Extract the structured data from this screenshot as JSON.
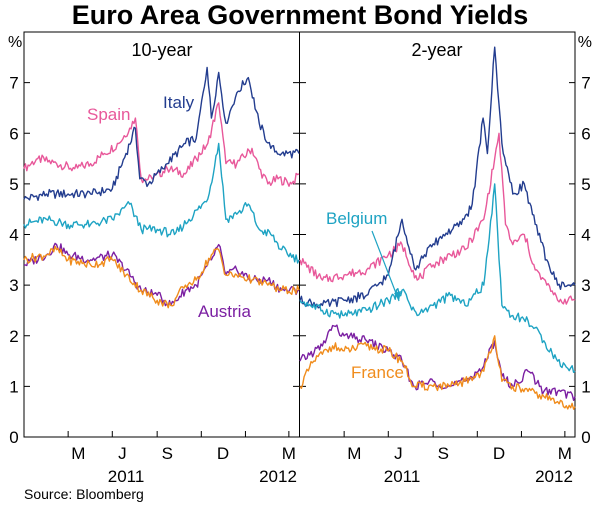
{
  "chart_data": {
    "type": "line",
    "title": "Euro Area Government Bond Yields",
    "y_unit": "%",
    "ylim": [
      0,
      8
    ],
    "yticks": [
      0,
      1,
      2,
      3,
      4,
      5,
      6,
      7
    ],
    "x_range": [
      "2011-03-01",
      "2012-03-15"
    ],
    "x_tick_labels": [
      "M",
      "J",
      "S",
      "D",
      "M"
    ],
    "x_year_labels": [
      "2011",
      "2012"
    ],
    "grid": false,
    "source": "Source: Bloomberg",
    "colors": {
      "Spain": "#e8589a",
      "Italy": "#233d8f",
      "Belgium": "#1ea3c3",
      "Austria": "#7b1fa2",
      "France": "#f08c1c"
    },
    "panels": [
      {
        "title": "10-year",
        "series": [
          {
            "name": "Spain",
            "color": "#e8589a",
            "points": [
              [
                "2011-03-01",
                5.3
              ],
              [
                "2011-03-20",
                5.5
              ],
              [
                "2011-04-15",
                5.4
              ],
              [
                "2011-05-10",
                5.3
              ],
              [
                "2011-06-01",
                5.4
              ],
              [
                "2011-06-20",
                5.6
              ],
              [
                "2011-07-10",
                5.8
              ],
              [
                "2011-07-25",
                6.1
              ],
              [
                "2011-08-02",
                6.3
              ],
              [
                "2011-08-10",
                5.1
              ],
              [
                "2011-08-25",
                5.1
              ],
              [
                "2011-09-15",
                5.3
              ],
              [
                "2011-10-10",
                5.2
              ],
              [
                "2011-10-25",
                5.5
              ],
              [
                "2011-11-10",
                5.8
              ],
              [
                "2011-11-25",
                6.6
              ],
              [
                "2011-12-05",
                5.4
              ],
              [
                "2011-12-20",
                5.4
              ],
              [
                "2012-01-10",
                5.7
              ],
              [
                "2012-01-20",
                5.3
              ],
              [
                "2012-02-01",
                5.0
              ],
              [
                "2012-02-15",
                5.1
              ],
              [
                "2012-03-05",
                5.0
              ],
              [
                "2012-03-15",
                5.2
              ]
            ]
          },
          {
            "name": "Italy",
            "color": "#233d8f",
            "points": [
              [
                "2011-03-01",
                4.7
              ],
              [
                "2011-04-01",
                4.8
              ],
              [
                "2011-05-01",
                4.8
              ],
              [
                "2011-06-01",
                4.8
              ],
              [
                "2011-07-01",
                4.9
              ],
              [
                "2011-07-20",
                5.6
              ],
              [
                "2011-08-02",
                6.1
              ],
              [
                "2011-08-08",
                5.1
              ],
              [
                "2011-08-20",
                5.0
              ],
              [
                "2011-09-15",
                5.4
              ],
              [
                "2011-10-10",
                5.8
              ],
              [
                "2011-10-25",
                5.9
              ],
              [
                "2011-11-09",
                7.3
              ],
              [
                "2011-11-15",
                6.3
              ],
              [
                "2011-11-25",
                7.2
              ],
              [
                "2011-12-05",
                6.2
              ],
              [
                "2011-12-20",
                6.8
              ],
              [
                "2012-01-05",
                7.1
              ],
              [
                "2012-01-20",
                6.2
              ],
              [
                "2012-02-05",
                5.7
              ],
              [
                "2012-02-20",
                5.6
              ],
              [
                "2012-03-15",
                5.6
              ]
            ]
          },
          {
            "name": "Belgium",
            "color": "#1ea3c3",
            "points": [
              [
                "2011-03-01",
                4.2
              ],
              [
                "2011-04-01",
                4.3
              ],
              [
                "2011-05-01",
                4.2
              ],
              [
                "2011-06-01",
                4.2
              ],
              [
                "2011-07-01",
                4.3
              ],
              [
                "2011-07-25",
                4.6
              ],
              [
                "2011-08-10",
                4.1
              ],
              [
                "2011-09-01",
                4.1
              ],
              [
                "2011-09-25",
                4.0
              ],
              [
                "2011-10-15",
                4.3
              ],
              [
                "2011-11-10",
                4.7
              ],
              [
                "2011-11-25",
                5.8
              ],
              [
                "2011-12-05",
                4.3
              ],
              [
                "2011-12-20",
                4.4
              ],
              [
                "2012-01-05",
                4.6
              ],
              [
                "2012-01-20",
                4.1
              ],
              [
                "2012-02-05",
                4.0
              ],
              [
                "2012-02-20",
                3.7
              ],
              [
                "2012-03-15",
                3.5
              ]
            ]
          },
          {
            "name": "Austria",
            "color": "#7b1fa2",
            "points": [
              [
                "2011-03-01",
                3.4
              ],
              [
                "2011-04-01",
                3.6
              ],
              [
                "2011-04-15",
                3.8
              ],
              [
                "2011-05-01",
                3.6
              ],
              [
                "2011-06-01",
                3.5
              ],
              [
                "2011-07-01",
                3.6
              ],
              [
                "2011-07-20",
                3.3
              ],
              [
                "2011-08-10",
                2.9
              ],
              [
                "2011-09-01",
                2.8
              ],
              [
                "2011-09-20",
                2.6
              ],
              [
                "2011-10-10",
                2.9
              ],
              [
                "2011-10-25",
                3.0
              ],
              [
                "2011-11-15",
                3.5
              ],
              [
                "2011-11-25",
                3.8
              ],
              [
                "2011-12-05",
                3.2
              ],
              [
                "2011-12-20",
                3.3
              ],
              [
                "2012-01-10",
                3.1
              ],
              [
                "2012-02-01",
                3.1
              ],
              [
                "2012-02-20",
                2.9
              ],
              [
                "2012-03-15",
                2.9
              ]
            ]
          },
          {
            "name": "France",
            "color": "#f08c1c",
            "points": [
              [
                "2011-03-01",
                3.5
              ],
              [
                "2011-04-01",
                3.6
              ],
              [
                "2011-04-15",
                3.7
              ],
              [
                "2011-05-01",
                3.5
              ],
              [
                "2011-06-01",
                3.4
              ],
              [
                "2011-07-01",
                3.5
              ],
              [
                "2011-07-20",
                3.2
              ],
              [
                "2011-08-10",
                2.9
              ],
              [
                "2011-09-01",
                2.7
              ],
              [
                "2011-09-20",
                2.6
              ],
              [
                "2011-10-10",
                3.0
              ],
              [
                "2011-10-25",
                3.1
              ],
              [
                "2011-11-15",
                3.6
              ],
              [
                "2011-11-25",
                3.7
              ],
              [
                "2011-12-05",
                3.2
              ],
              [
                "2011-12-20",
                3.2
              ],
              [
                "2012-01-10",
                3.1
              ],
              [
                "2012-02-01",
                3.0
              ],
              [
                "2012-02-20",
                2.9
              ],
              [
                "2012-03-15",
                2.9
              ]
            ]
          }
        ],
        "annotations": [
          {
            "text": "Spain",
            "series": "Spain"
          },
          {
            "text": "Italy",
            "series": "Italy"
          },
          {
            "text": "Austria",
            "series": "Austria"
          }
        ]
      },
      {
        "title": "2-year",
        "series": [
          {
            "name": "Spain",
            "color": "#e8589a",
            "points": [
              [
                "2011-03-01",
                3.5
              ],
              [
                "2011-04-01",
                3.1
              ],
              [
                "2011-05-01",
                3.2
              ],
              [
                "2011-06-01",
                3.3
              ],
              [
                "2011-07-01",
                3.6
              ],
              [
                "2011-07-20",
                3.8
              ],
              [
                "2011-08-10",
                3.1
              ],
              [
                "2011-09-01",
                3.4
              ],
              [
                "2011-09-25",
                3.6
              ],
              [
                "2011-10-15",
                3.7
              ],
              [
                "2011-11-10",
                4.3
              ],
              [
                "2011-11-25",
                5.5
              ],
              [
                "2011-12-01",
                6.0
              ],
              [
                "2011-12-10",
                4.2
              ],
              [
                "2011-12-20",
                3.8
              ],
              [
                "2012-01-05",
                4.0
              ],
              [
                "2012-01-20",
                3.3
              ],
              [
                "2012-02-05",
                3.0
              ],
              [
                "2012-02-20",
                2.7
              ],
              [
                "2012-03-15",
                2.7
              ]
            ]
          },
          {
            "name": "Italy",
            "color": "#233d8f",
            "points": [
              [
                "2011-03-01",
                2.7
              ],
              [
                "2011-04-01",
                2.6
              ],
              [
                "2011-05-01",
                2.7
              ],
              [
                "2011-06-01",
                2.8
              ],
              [
                "2011-07-01",
                3.2
              ],
              [
                "2011-07-20",
                4.3
              ],
              [
                "2011-08-08",
                3.3
              ],
              [
                "2011-08-20",
                3.6
              ],
              [
                "2011-09-15",
                4.0
              ],
              [
                "2011-10-10",
                4.2
              ],
              [
                "2011-10-25",
                4.6
              ],
              [
                "2011-11-09",
                6.3
              ],
              [
                "2011-11-15",
                5.6
              ],
              [
                "2011-11-25",
                7.7
              ],
              [
                "2011-12-05",
                5.8
              ],
              [
                "2011-12-20",
                4.8
              ],
              [
                "2012-01-05",
                5.0
              ],
              [
                "2012-01-20",
                4.2
              ],
              [
                "2012-02-05",
                3.5
              ],
              [
                "2012-02-20",
                3.0
              ],
              [
                "2012-03-15",
                3.0
              ]
            ]
          },
          {
            "name": "Belgium",
            "color": "#1ea3c3",
            "points": [
              [
                "2011-03-01",
                2.7
              ],
              [
                "2011-04-01",
                2.5
              ],
              [
                "2011-05-01",
                2.4
              ],
              [
                "2011-06-01",
                2.5
              ],
              [
                "2011-07-01",
                2.7
              ],
              [
                "2011-07-20",
                2.9
              ],
              [
                "2011-08-10",
                2.4
              ],
              [
                "2011-09-01",
                2.6
              ],
              [
                "2011-09-25",
                2.8
              ],
              [
                "2011-10-15",
                2.6
              ],
              [
                "2011-11-10",
                3.0
              ],
              [
                "2011-11-25",
                5.0
              ],
              [
                "2011-12-05",
                2.6
              ],
              [
                "2011-12-20",
                2.4
              ],
              [
                "2012-01-10",
                2.3
              ],
              [
                "2012-02-01",
                1.9
              ],
              [
                "2012-02-20",
                1.5
              ],
              [
                "2012-03-15",
                1.3
              ]
            ]
          },
          {
            "name": "Austria",
            "color": "#7b1fa2",
            "points": [
              [
                "2011-03-01",
                1.5
              ],
              [
                "2011-04-01",
                1.8
              ],
              [
                "2011-04-15",
                2.2
              ],
              [
                "2011-05-01",
                2.0
              ],
              [
                "2011-06-01",
                1.9
              ],
              [
                "2011-07-01",
                1.7
              ],
              [
                "2011-07-20",
                1.5
              ],
              [
                "2011-08-05",
                1.0
              ],
              [
                "2011-09-01",
                1.1
              ],
              [
                "2011-09-25",
                1.0
              ],
              [
                "2011-10-15",
                1.1
              ],
              [
                "2011-11-10",
                1.4
              ],
              [
                "2011-11-25",
                1.9
              ],
              [
                "2011-12-05",
                1.2
              ],
              [
                "2011-12-20",
                1.0
              ],
              [
                "2012-01-10",
                1.3
              ],
              [
                "2012-02-01",
                0.9
              ],
              [
                "2012-02-20",
                0.9
              ],
              [
                "2012-03-15",
                0.8
              ]
            ]
          },
          {
            "name": "France",
            "color": "#f08c1c",
            "points": [
              [
                "2011-03-01",
                1.0
              ],
              [
                "2011-03-20",
                1.5
              ],
              [
                "2011-04-15",
                1.8
              ],
              [
                "2011-05-01",
                1.7
              ],
              [
                "2011-06-01",
                1.8
              ],
              [
                "2011-07-01",
                1.7
              ],
              [
                "2011-07-20",
                1.5
              ],
              [
                "2011-08-05",
                1.0
              ],
              [
                "2011-09-01",
                1.0
              ],
              [
                "2011-09-25",
                1.0
              ],
              [
                "2011-10-15",
                1.1
              ],
              [
                "2011-11-10",
                1.3
              ],
              [
                "2011-11-25",
                2.0
              ],
              [
                "2011-12-05",
                1.1
              ],
              [
                "2011-12-20",
                1.0
              ],
              [
                "2012-01-10",
                0.9
              ],
              [
                "2012-02-01",
                0.8
              ],
              [
                "2012-02-20",
                0.7
              ],
              [
                "2012-03-15",
                0.6
              ]
            ]
          }
        ],
        "annotations": [
          {
            "text": "Belgium",
            "series": "Belgium"
          },
          {
            "text": "France",
            "series": "France"
          }
        ]
      }
    ]
  }
}
